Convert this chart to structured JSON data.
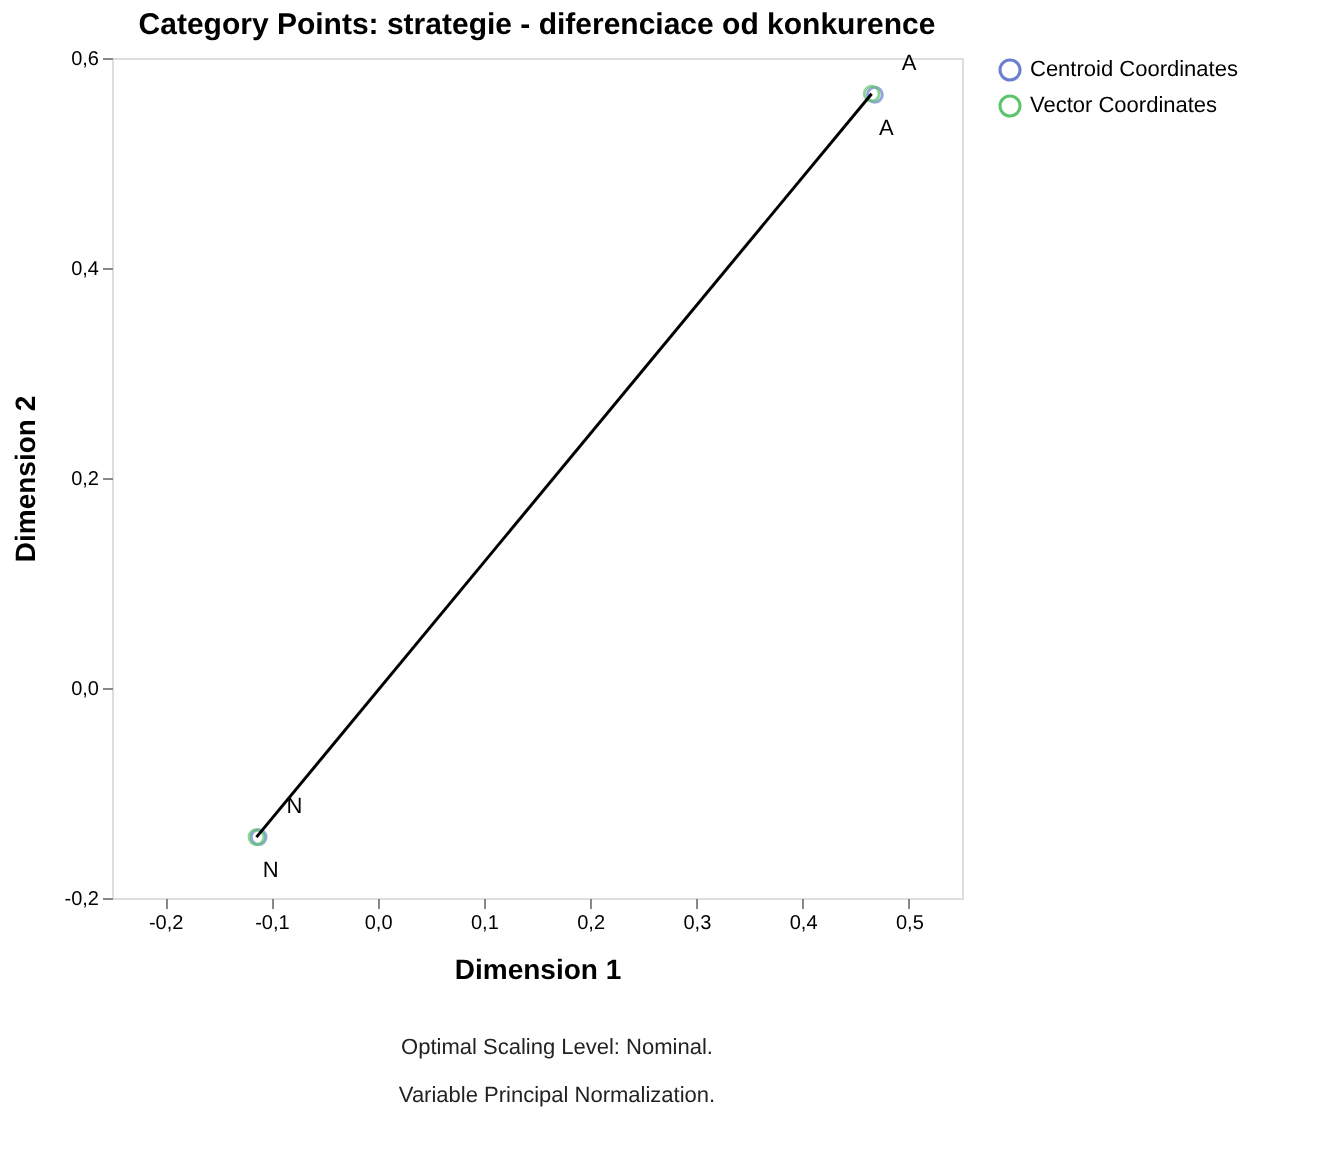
{
  "chart_data": {
    "type": "scatter",
    "title": "Category Points: strategie - diferenciace od konkurence",
    "xlabel": "Dimension 1",
    "ylabel": "Dimension 2",
    "series": [
      {
        "name": "Centroid Coordinates",
        "color": "#6a7fd0",
        "x": [
          0.468,
          -0.112
        ],
        "values": [
          0.565,
          -0.142
        ]
      },
      {
        "name": "Vector Coordinates",
        "color": "#5cc46a",
        "x": [
          0.465,
          -0.114
        ],
        "values": [
          0.566,
          -0.142
        ]
      },
      {
        "type": "line",
        "color": "#000000",
        "x": [
          -0.114,
          0.465
        ],
        "values": [
          -0.142,
          0.566
        ],
        "marker": "none"
      }
    ],
    "annotations": [
      {
        "text": "A",
        "x": 0.465,
        "y": 0.566
      },
      {
        "text": "A",
        "x": 0.468,
        "y": 0.565
      },
      {
        "text": "N",
        "x": -0.114,
        "y": -0.142
      },
      {
        "text": "N",
        "x": -0.112,
        "y": -0.142
      },
      "Optimal Scaling Level: Nominal.",
      "Variable Principal Normalization."
    ],
    "xlim": [
      -0.25,
      0.55
    ],
    "xticks": [
      {
        "value": -0.2,
        "label": "-0,2"
      },
      {
        "value": -0.1,
        "label": "-0,1"
      },
      {
        "value": 0.0,
        "label": "0,0"
      },
      {
        "value": 0.1,
        "label": "0,1"
      },
      {
        "value": 0.2,
        "label": "0,2"
      },
      {
        "value": 0.3,
        "label": "0,3"
      },
      {
        "value": 0.4,
        "label": "0,4"
      },
      {
        "value": 0.5,
        "label": "0,5"
      }
    ],
    "ylim": [
      -0.2,
      0.6
    ],
    "yticks": [
      {
        "value": -0.2,
        "label": "-0,2"
      },
      {
        "value": 0.0,
        "label": "0,0"
      },
      {
        "value": 0.2,
        "label": "0,2"
      },
      {
        "value": 0.4,
        "label": "0,4"
      },
      {
        "value": 0.6,
        "label": "0,6"
      }
    ],
    "grid": false,
    "legend": "top right",
    "marker": "circle"
  }
}
